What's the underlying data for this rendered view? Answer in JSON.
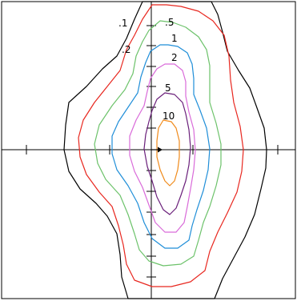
{
  "figure": {
    "contour_levels": [
      {
        "label": ".1",
        "color": "#000000"
      },
      {
        "label": ".2",
        "color": "#e8271f"
      },
      {
        "label": ".5",
        "color": "#6cc26a"
      },
      {
        "label": "1",
        "color": "#1f8ed8"
      },
      {
        "label": "2",
        "color": "#d96ad9"
      },
      {
        "label": "5",
        "color": "#6a1f7a"
      },
      {
        "label": "10",
        "color": "#f08a1a"
      }
    ],
    "axis_color": "#000000",
    "frame_color": "#000000"
  }
}
